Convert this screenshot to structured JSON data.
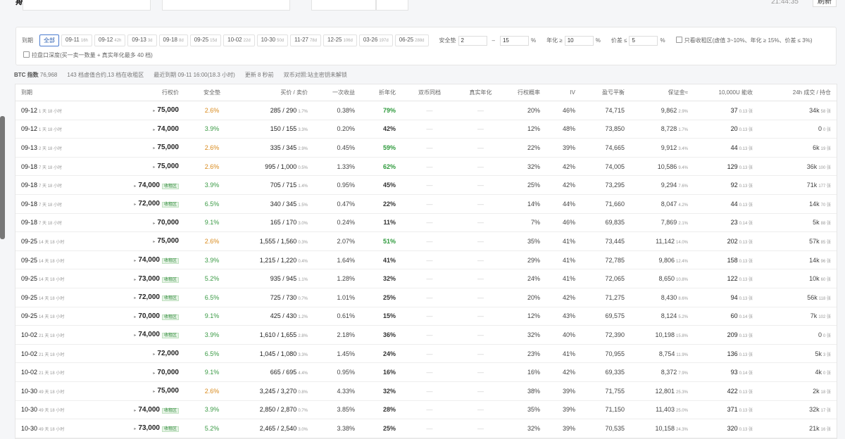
{
  "header": {
    "title": "期权收租",
    "time": "21:44:35",
    "refresh": "刷新"
  },
  "filters": {
    "expiry_label": "到期",
    "chips": [
      {
        "date": "全部"
      },
      {
        "date": "09-11",
        "sub": "16h"
      },
      {
        "date": "09-12",
        "sub": "42h"
      },
      {
        "date": "09-13",
        "sub": "3d"
      },
      {
        "date": "09-18",
        "sub": "8d"
      },
      {
        "date": "09-25",
        "sub": "15d"
      },
      {
        "date": "10-02",
        "sub": "22d"
      },
      {
        "date": "10-30",
        "sub": "50d"
      },
      {
        "date": "11-27",
        "sub": "78d"
      },
      {
        "date": "12-25",
        "sub": "106d"
      },
      {
        "date": "03-26",
        "sub": "197d"
      },
      {
        "date": "06-25",
        "sub": "288d"
      }
    ],
    "safety_label": "安全垫",
    "safety_min": "2",
    "dash": "–",
    "safety_max": "15",
    "pct": "%",
    "annual_label": "年化 ≥",
    "annual_min": "10",
    "spread_label": "价差 ≤",
    "spread_max": "5",
    "only_zone": "只看收租区(虚值 3~10%、年化 ≥ 15%、价差 ≤ 3%)",
    "depth": "拉盘口深度(买一卖一数量 + 真实年化最多 40 档)"
  },
  "info": {
    "index_label": "BTC 指数",
    "index": "76,968",
    "count": "143 档虚值合约,13 档在收租区",
    "nearest": "最近到期 09-11 16:00(18.3 小时)",
    "updated": "更新 8 秒前",
    "dual": "双币对照:站主密钥未解锁"
  },
  "table": {
    "headers": [
      "到期",
      "行权价",
      "安全垫",
      "买价 / 卖价",
      "一次收益",
      "折年化",
      "双币同档",
      "真实年化",
      "行权概率",
      "IV",
      "盈亏平衡",
      "保证金≈",
      "10,000U 能收",
      "24h 成交 / 持仓"
    ],
    "rows": [
      {
        "exp": "09-12",
        "rem": "1 天 18 小时",
        "strike": "75,000",
        "safe": "2.6%",
        "ba": "285 / 290",
        "spr": "1.7%",
        "once": "0.38%",
        "ann": "79%",
        "dual": "—",
        "real": "—",
        "prob": "20%",
        "iv": "46%",
        "be": "74,715",
        "mg": "9,862",
        "mgp": "2.9%",
        "rc": "37",
        "rcl": "0.13 张",
        "vol": "34k",
        "oi": "58 张"
      },
      {
        "exp": "09-12",
        "rem": "1 天 18 小时",
        "strike": "74,000",
        "safe": "3.9%",
        "ba": "150 / 155",
        "spr": "3.3%",
        "once": "0.20%",
        "ann": "42%",
        "dual": "—",
        "real": "—",
        "prob": "12%",
        "iv": "48%",
        "be": "73,850",
        "mg": "8,728",
        "mgp": "1.7%",
        "rc": "20",
        "rcl": "0.13 张",
        "vol": "0",
        "oi": "0 张"
      },
      {
        "exp": "09-13",
        "rem": "2 天 18 小时",
        "strike": "75,000",
        "safe": "2.6%",
        "ba": "335 / 345",
        "spr": "2.9%",
        "once": "0.45%",
        "ann": "59%",
        "dual": "—",
        "real": "—",
        "prob": "22%",
        "iv": "39%",
        "be": "74,665",
        "mg": "9,912",
        "mgp": "3.4%",
        "rc": "44",
        "rcl": "0.13 张",
        "vol": "6k",
        "oi": "19 张"
      },
      {
        "exp": "09-18",
        "rem": "7 天 18 小时",
        "strike": "75,000",
        "safe": "2.6%",
        "ba": "995 / 1,000",
        "spr": "0.5%",
        "once": "1.33%",
        "ann": "62%",
        "dual": "—",
        "real": "—",
        "prob": "32%",
        "iv": "42%",
        "be": "74,005",
        "mg": "10,586",
        "mgp": "9.4%",
        "rc": "129",
        "rcl": "0.13 张",
        "vol": "36k",
        "oi": "100 张"
      },
      {
        "exp": "09-18",
        "rem": "7 天 18 小时",
        "strike": "74,000",
        "zone": "收租区",
        "safe": "3.9%",
        "ba": "705 / 715",
        "spr": "1.4%",
        "once": "0.95%",
        "ann": "45%",
        "dual": "—",
        "real": "—",
        "prob": "25%",
        "iv": "42%",
        "be": "73,295",
        "mg": "9,294",
        "mgp": "7.6%",
        "rc": "92",
        "rcl": "0.13 张",
        "vol": "71k",
        "oi": "177 张"
      },
      {
        "exp": "09-18",
        "rem": "7 天 18 小时",
        "strike": "72,000",
        "zone": "收租区",
        "safe": "6.5%",
        "ba": "340 / 345",
        "spr": "1.5%",
        "once": "0.47%",
        "ann": "22%",
        "dual": "—",
        "real": "—",
        "prob": "14%",
        "iv": "44%",
        "be": "71,660",
        "mg": "8,047",
        "mgp": "4.2%",
        "rc": "44",
        "rcl": "0.13 张",
        "vol": "14k",
        "oi": "70 张"
      },
      {
        "exp": "09-18",
        "rem": "7 天 18 小时",
        "strike": "70,000",
        "safe": "9.1%",
        "ba": "165 / 170",
        "spr": "3.0%",
        "once": "0.24%",
        "ann": "11%",
        "dual": "—",
        "real": "—",
        "prob": "7%",
        "iv": "46%",
        "be": "69,835",
        "mg": "7,869",
        "mgp": "2.1%",
        "rc": "23",
        "rcl": "0.14 张",
        "vol": "5k",
        "oi": "88 张"
      },
      {
        "exp": "09-25",
        "rem": "14 天 18 小时",
        "strike": "75,000",
        "safe": "2.6%",
        "ba": "1,555 / 1,560",
        "spr": "0.3%",
        "once": "2.07%",
        "ann": "51%",
        "dual": "—",
        "real": "—",
        "prob": "35%",
        "iv": "41%",
        "be": "73,445",
        "mg": "11,142",
        "mgp": "14.0%",
        "rc": "202",
        "rcl": "0.13 张",
        "vol": "57k",
        "oi": "85 张"
      },
      {
        "exp": "09-25",
        "rem": "14 天 18 小时",
        "strike": "74,000",
        "zone": "收租区",
        "safe": "3.9%",
        "ba": "1,215 / 1,220",
        "spr": "0.4%",
        "once": "1.64%",
        "ann": "41%",
        "dual": "—",
        "real": "—",
        "prob": "29%",
        "iv": "41%",
        "be": "72,785",
        "mg": "9,806",
        "mgp": "12.4%",
        "rc": "158",
        "rcl": "0.13 张",
        "vol": "14k",
        "oi": "96 张"
      },
      {
        "exp": "09-25",
        "rem": "14 天 18 小时",
        "strike": "73,000",
        "zone": "收租区",
        "safe": "5.2%",
        "ba": "935 / 945",
        "spr": "1.1%",
        "once": "1.28%",
        "ann": "32%",
        "dual": "—",
        "real": "—",
        "prob": "24%",
        "iv": "41%",
        "be": "72,065",
        "mg": "8,650",
        "mgp": "10.8%",
        "rc": "122",
        "rcl": "0.13 张",
        "vol": "10k",
        "oi": "60 张"
      },
      {
        "exp": "09-25",
        "rem": "14 天 18 小时",
        "strike": "72,000",
        "zone": "收租区",
        "safe": "6.5%",
        "ba": "725 / 730",
        "spr": "0.7%",
        "once": "1.01%",
        "ann": "25%",
        "dual": "—",
        "real": "—",
        "prob": "20%",
        "iv": "42%",
        "be": "71,275",
        "mg": "8,430",
        "mgp": "8.6%",
        "rc": "94",
        "rcl": "0.13 张",
        "vol": "56k",
        "oi": "118 张"
      },
      {
        "exp": "09-25",
        "rem": "14 天 18 小时",
        "strike": "70,000",
        "zone": "收租区",
        "safe": "9.1%",
        "ba": "425 / 430",
        "spr": "1.2%",
        "once": "0.61%",
        "ann": "15%",
        "dual": "—",
        "real": "—",
        "prob": "12%",
        "iv": "43%",
        "be": "69,575",
        "mg": "8,124",
        "mgp": "5.2%",
        "rc": "60",
        "rcl": "0.14 张",
        "vol": "7k",
        "oi": "102 张"
      },
      {
        "exp": "10-02",
        "rem": "21 天 18 小时",
        "strike": "74,000",
        "zone": "收租区",
        "safe": "3.9%",
        "ba": "1,610 / 1,655",
        "spr": "2.8%",
        "once": "2.18%",
        "ann": "36%",
        "dual": "—",
        "real": "—",
        "prob": "32%",
        "iv": "40%",
        "be": "72,390",
        "mg": "10,198",
        "mgp": "15.8%",
        "rc": "209",
        "rcl": "0.13 张",
        "vol": "0",
        "oi": "0 张"
      },
      {
        "exp": "10-02",
        "rem": "21 天 18 小时",
        "strike": "72,000",
        "safe": "6.5%",
        "ba": "1,045 / 1,080",
        "spr": "3.3%",
        "once": "1.45%",
        "ann": "24%",
        "dual": "—",
        "real": "—",
        "prob": "23%",
        "iv": "41%",
        "be": "70,955",
        "mg": "8,754",
        "mgp": "11.9%",
        "rc": "136",
        "rcl": "0.13 张",
        "vol": "5k",
        "oi": "3 张"
      },
      {
        "exp": "10-02",
        "rem": "21 天 18 小时",
        "strike": "70,000",
        "safe": "9.1%",
        "ba": "665 / 695",
        "spr": "4.4%",
        "once": "0.95%",
        "ann": "16%",
        "dual": "—",
        "real": "—",
        "prob": "16%",
        "iv": "42%",
        "be": "69,335",
        "mg": "8,372",
        "mgp": "7.9%",
        "rc": "93",
        "rcl": "0.14 张",
        "vol": "4k",
        "oi": "0 张"
      },
      {
        "exp": "10-30",
        "rem": "49 天 18 小时",
        "strike": "75,000",
        "safe": "2.6%",
        "ba": "3,245 / 3,270",
        "spr": "0.8%",
        "once": "4.33%",
        "ann": "32%",
        "dual": "—",
        "real": "—",
        "prob": "38%",
        "iv": "39%",
        "be": "71,755",
        "mg": "12,801",
        "mgp": "25.3%",
        "rc": "422",
        "rcl": "0.13 张",
        "vol": "2k",
        "oi": "18 张"
      },
      {
        "exp": "10-30",
        "rem": "49 天 18 小时",
        "strike": "74,000",
        "zone": "收租区",
        "safe": "3.9%",
        "ba": "2,850 / 2,870",
        "spr": "0.7%",
        "once": "3.85%",
        "ann": "28%",
        "dual": "—",
        "real": "—",
        "prob": "35%",
        "iv": "39%",
        "be": "71,150",
        "mg": "11,403",
        "mgp": "25.0%",
        "rc": "371",
        "rcl": "0.13 张",
        "vol": "32k",
        "oi": "17 张"
      },
      {
        "exp": "10-30",
        "rem": "49 天 18 小时",
        "strike": "73,000",
        "zone": "收租区",
        "safe": "5.2%",
        "ba": "2,465 / 2,540",
        "spr": "3.0%",
        "once": "3.38%",
        "ann": "25%",
        "dual": "—",
        "real": "—",
        "prob": "32%",
        "iv": "39%",
        "be": "70,535",
        "mg": "10,158",
        "mgp": "24.3%",
        "rc": "320",
        "rcl": "0.13 张",
        "vol": "21k",
        "oi": "16 张"
      }
    ]
  }
}
